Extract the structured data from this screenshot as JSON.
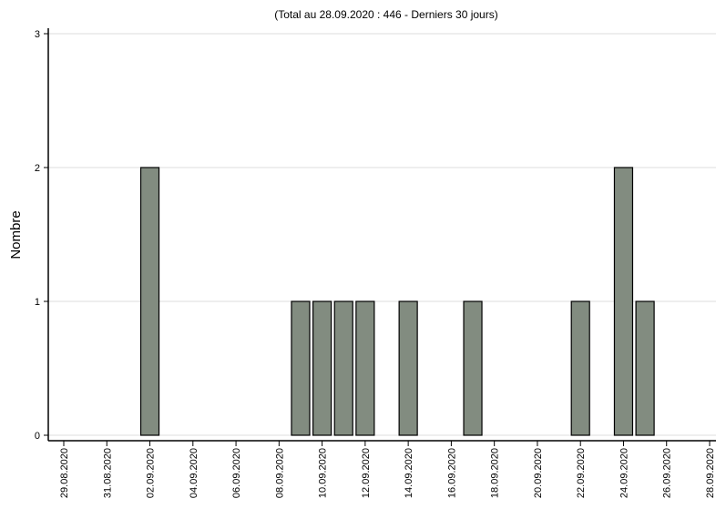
{
  "chart_data": {
    "type": "bar",
    "title": "(Total au 28.09.2020 : 446 - Derniers 30 jours)",
    "y_label": "Nombre",
    "x": [
      "02.09.2020",
      "09.09.2020",
      "10.09.2020",
      "11.09.2020",
      "12.09.2020",
      "14.09.2020",
      "17.09.2020",
      "22.09.2020",
      "24.09.2020",
      "25.09.2020"
    ],
    "values": [
      2,
      1,
      1,
      1,
      1,
      1,
      1,
      1,
      2,
      1
    ],
    "color": "#828c80",
    "xlim": [
      "29.08.2020",
      "28.09.2020"
    ],
    "xticks": [
      "29.08.2020",
      "31.08.2020",
      "02.09.2020",
      "04.09.2020",
      "06.09.2020",
      "08.09.2020",
      "10.09.2020",
      "12.09.2020",
      "14.09.2020",
      "16.09.2020",
      "18.09.2020",
      "20.09.2020",
      "22.09.2020",
      "24.09.2020",
      "26.09.2020",
      "28.09.2020"
    ],
    "ylim": [
      0,
      3
    ],
    "yticks": [
      0,
      1,
      2,
      3
    ],
    "grid": true
  }
}
